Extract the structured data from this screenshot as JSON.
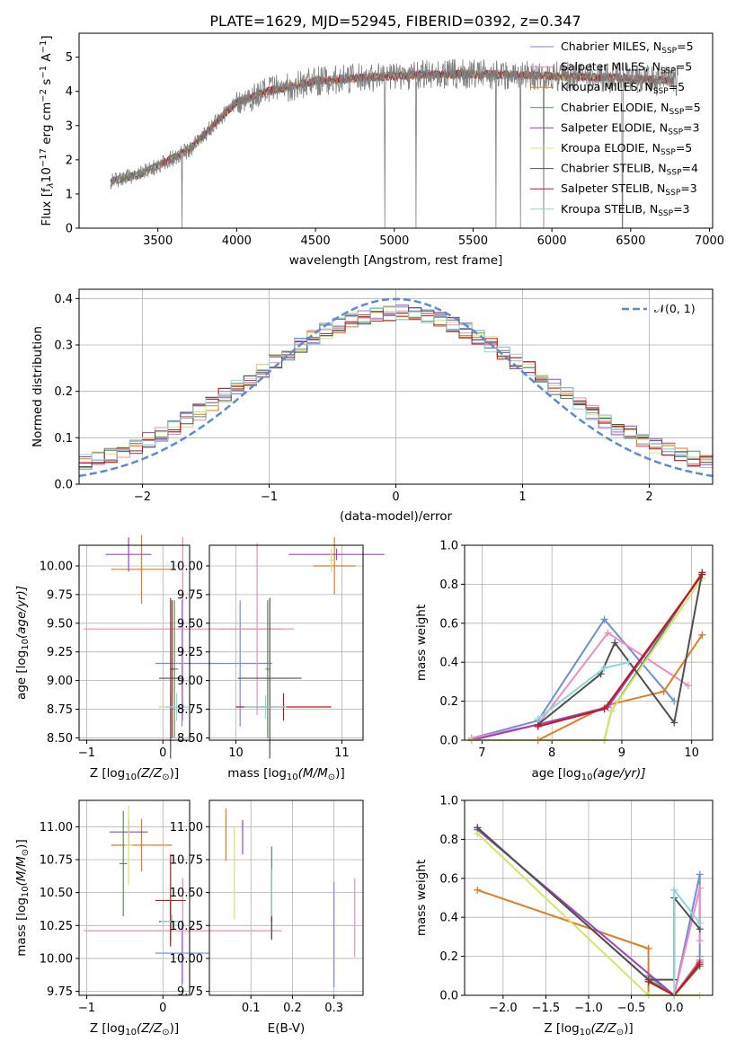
{
  "figure": {
    "title": "PLATE=1629, MJD=52945, FIBERID=0392, z=0.347"
  },
  "models": [
    {
      "label": "Chabrier MILES, N",
      "sub": "SSP",
      "suffix": "=5",
      "color": "#6a8fd6"
    },
    {
      "label": "Salpeter MILES, N",
      "sub": "SSP",
      "suffix": "=5",
      "color": "#f08ac0"
    },
    {
      "label": "Kroupa MILES, N",
      "sub": "SSP",
      "suffix": "=5",
      "color": "#e07b26"
    },
    {
      "label": "Chabrier ELODIE, N",
      "sub": "SSP",
      "suffix": "=5",
      "color": "#5c8a5c"
    },
    {
      "label": "Salpeter ELODIE, N",
      "sub": "SSP",
      "suffix": "=3",
      "color": "#a040c0"
    },
    {
      "label": "Kroupa ELODIE, N",
      "sub": "SSP",
      "suffix": "=5",
      "color": "#d8e36a"
    },
    {
      "label": "Chabrier STELIB, N",
      "sub": "SSP",
      "suffix": "=4",
      "color": "#505050"
    },
    {
      "label": "Salpeter STELIB, N",
      "sub": "SSP",
      "suffix": "=3",
      "color": "#c01818"
    },
    {
      "label": "Kroupa STELIB, N",
      "sub": "SSP",
      "suffix": "=3",
      "color": "#8ad8d8"
    }
  ],
  "chart_data": [
    {
      "id": "spectrum",
      "type": "line",
      "xlabel": "wavelength [Angstrom, rest frame]",
      "ylabel": "Flux [f",
      "ylabel_parts": [
        "Flux [f",
        "λ",
        "10",
        "−17",
        " erg cm",
        "−2",
        " s",
        "−1",
        " A",
        "−1",
        "]"
      ],
      "xlim": [
        3000,
        7020
      ],
      "ylim": [
        0,
        5.7
      ],
      "xticks": [
        "3500",
        "4000",
        "4500",
        "5000",
        "5500",
        "6000",
        "6500",
        "7000"
      ],
      "yticks": [
        "0",
        "1",
        "2",
        "3",
        "4",
        "5"
      ],
      "data_color": "#808080",
      "continuum": [
        [
          3200,
          1.35
        ],
        [
          3400,
          1.6
        ],
        [
          3550,
          1.95
        ],
        [
          3700,
          2.3
        ],
        [
          3850,
          3.0
        ],
        [
          4000,
          3.7
        ],
        [
          4200,
          4.0
        ],
        [
          4500,
          4.3
        ],
        [
          4800,
          4.4
        ],
        [
          5200,
          4.5
        ],
        [
          5600,
          4.5
        ],
        [
          6000,
          4.45
        ],
        [
          6400,
          4.4
        ],
        [
          6800,
          4.3
        ]
      ]
    },
    {
      "id": "residuals",
      "type": "line",
      "xlabel": "(data-model)/error",
      "ylabel": "Normed distribution",
      "xlim": [
        -2.5,
        2.5
      ],
      "ylim": [
        0,
        0.42
      ],
      "xticks": [
        "−2",
        "−1",
        "0",
        "1",
        "2"
      ],
      "yticks": [
        "0.0",
        "0.1",
        "0.2",
        "0.3",
        "0.4"
      ],
      "gauss_label": "𝒩(0, 1)",
      "gauss_color": "#5b8ad6"
    },
    {
      "id": "age_vs_Z",
      "type": "scatter",
      "xlabel": "Z [log",
      "ylabel": "age  [log",
      "xlim": [
        -1.1,
        0.35
      ],
      "ylim": [
        8.48,
        10.18
      ],
      "xticks": [
        "−1",
        "0"
      ],
      "yticks": [
        "8.50",
        "8.75",
        "9.00",
        "9.25",
        "9.50",
        "9.75",
        "10.00"
      ],
      "points": [
        {
          "x": 0.25,
          "y": 9.15,
          "xerr": 0.35,
          "yerr": 0.55
        },
        {
          "x": 0.26,
          "y": 9.45,
          "xerr": 1.3,
          "yerr": 0.8
        },
        {
          "x": -0.28,
          "y": 9.97,
          "xerr": 0.4,
          "yerr": 0.3
        },
        {
          "x": 0.15,
          "y": 9.1,
          "xerr": 0.05,
          "yerr": 0.6
        },
        {
          "x": -0.45,
          "y": 10.1,
          "xerr": 0.3,
          "yerr": 0.15
        },
        {
          "x": 0.1,
          "y": 8.77,
          "xerr": 0.15,
          "yerr": 0.12
        },
        {
          "x": 0.1,
          "y": 9.02,
          "xerr": 0.15,
          "yerr": 0.7
        },
        {
          "x": 0.12,
          "y": 9.1,
          "xerr": 0.02,
          "yerr": 0.6
        },
        {
          "x": 0.18,
          "y": 8.77,
          "xerr": 0.15,
          "yerr": 0.12
        }
      ]
    },
    {
      "id": "age_vs_mass",
      "type": "scatter",
      "xlabel": "mass [log",
      "xlim": [
        9.75,
        11.2
      ],
      "ylim": [
        8.48,
        10.18
      ],
      "xticks": [
        "10",
        "11"
      ],
      "yticks": [
        "8.50",
        "8.75",
        "9.00",
        "9.25",
        "9.50",
        "9.75",
        "10.00"
      ],
      "points": [
        {
          "x": 10.04,
          "y": 9.15,
          "xerr": 0.3,
          "yerr": 0.55
        },
        {
          "x": 10.2,
          "y": 9.45,
          "xerr": 0.35,
          "yerr": 0.75
        },
        {
          "x": 10.93,
          "y": 10.0,
          "xerr": 0.2,
          "yerr": 0.25
        },
        {
          "x": 10.3,
          "y": 9.1,
          "xerr": 0.02,
          "yerr": 0.6
        },
        {
          "x": 10.95,
          "y": 10.1,
          "xerr": 0.45,
          "yerr": 0.05
        },
        {
          "x": 10.9,
          "y": 10.05,
          "xerr": 0.02,
          "yerr": 0.1
        },
        {
          "x": 10.32,
          "y": 9.02,
          "xerr": 0.3,
          "yerr": 0.7
        },
        {
          "x": 10.45,
          "y": 8.77,
          "xerr": 0.45,
          "yerr": 0.12
        },
        {
          "x": 10.28,
          "y": 8.77,
          "xerr": 0.2,
          "yerr": 0.1
        }
      ]
    },
    {
      "id": "mass_weight_vs_age",
      "type": "line",
      "xlabel": "age  [log",
      "ylabel": "mass weight",
      "xlim": [
        6.75,
        10.3
      ],
      "ylim": [
        0,
        1.0
      ],
      "xticks": [
        "7",
        "8",
        "9",
        "10"
      ],
      "yticks": [
        "0.0",
        "0.2",
        "0.4",
        "0.6",
        "0.8",
        "1.0"
      ],
      "series": [
        {
          "x": [
            6.85,
            7.8,
            8.75,
            9.75
          ],
          "y": [
            0.01,
            0.1,
            0.62,
            0.2
          ]
        },
        {
          "x": [
            6.85,
            7.8,
            8.8,
            9.95
          ],
          "y": [
            0.01,
            0.08,
            0.55,
            0.28
          ]
        },
        {
          "x": [
            6.85,
            7.8,
            8.8,
            9.6,
            10.15
          ],
          "y": [
            0.0,
            0.0,
            0.18,
            0.25,
            0.54
          ]
        },
        {
          "x": [
            6.85,
            8.75,
            8.85,
            10.15
          ],
          "y": [
            0.0,
            0.0,
            0.15,
            0.86
          ]
        },
        {
          "x": [
            6.85,
            7.8,
            8.8,
            10.15
          ],
          "y": [
            0.0,
            0.08,
            0.17,
            0.85
          ]
        },
        {
          "x": [
            6.85,
            8.75,
            8.85,
            10.15
          ],
          "y": [
            0.0,
            0.0,
            0.15,
            0.83
          ]
        },
        {
          "x": [
            7.8,
            8.7,
            8.9,
            9.75,
            10.15
          ],
          "y": [
            0.08,
            0.34,
            0.5,
            0.09,
            0.86
          ]
        },
        {
          "x": [
            7.8,
            8.75,
            10.15
          ],
          "y": [
            0.07,
            0.16,
            0.85
          ]
        },
        {
          "x": [
            7.8,
            8.75,
            9.1
          ],
          "y": [
            0.11,
            0.37,
            0.4
          ]
        }
      ]
    },
    {
      "id": "mass_vs_Z",
      "type": "scatter",
      "xlabel": "Z [log",
      "ylabel": "mass [log",
      "xlim": [
        -1.1,
        0.35
      ],
      "ylim": [
        9.72,
        11.2
      ],
      "xticks": [
        "−1",
        "0"
      ],
      "yticks": [
        "9.75",
        "10.00",
        "10.25",
        "10.50",
        "10.75",
        "11.00"
      ],
      "points": [
        {
          "x": 0.25,
          "y": 10.04,
          "xerr": 0.35,
          "yerr": 0.25
        },
        {
          "x": 0.26,
          "y": 10.21,
          "xerr": 1.3,
          "yerr": 0.4
        },
        {
          "x": -0.28,
          "y": 10.86,
          "xerr": 0.4,
          "yerr": 0.2
        },
        {
          "x": -0.52,
          "y": 10.72,
          "xerr": 0.05,
          "yerr": 0.4
        },
        {
          "x": -0.45,
          "y": 10.96,
          "xerr": 0.25,
          "yerr": 0.1
        },
        {
          "x": -0.45,
          "y": 10.86,
          "xerr": 0.05,
          "yerr": 0.3
        },
        {
          "x": 0.1,
          "y": 10.28,
          "xerr": 0.15,
          "yerr": 0.15
        },
        {
          "x": 0.1,
          "y": 10.44,
          "xerr": 0.2,
          "yerr": 0.35
        },
        {
          "x": 0.12,
          "y": 10.28,
          "xerr": 0.15,
          "yerr": 0.05
        }
      ]
    },
    {
      "id": "mass_vs_EBV",
      "type": "scatter",
      "xlabel": "E(B-V)",
      "xlim": [
        0.0,
        0.37
      ],
      "ylim": [
        9.72,
        11.2
      ],
      "xticks": [
        "0.1",
        "0.2",
        "0.3"
      ],
      "yticks": [
        "9.75",
        "10.00",
        "10.25",
        "10.50",
        "10.75",
        "11.00"
      ],
      "points": [
        {
          "x": 0.3,
          "y": 10.18,
          "xerr": 0,
          "yerr": 0.4
        },
        {
          "x": 0.35,
          "y": 10.31,
          "xerr": 0,
          "yerr": 0.3
        },
        {
          "x": 0.04,
          "y": 10.94,
          "xerr": 0,
          "yerr": 0.2
        },
        {
          "x": 0.15,
          "y": 10.5,
          "xerr": 0,
          "yerr": 0.35
        },
        {
          "x": 0.08,
          "y": 10.92,
          "xerr": 0,
          "yerr": 0.13
        },
        {
          "x": 0.06,
          "y": 10.65,
          "xerr": 0,
          "yerr": 0.35
        },
        {
          "x": 0.15,
          "y": 10.41,
          "xerr": 0,
          "yerr": 0.27
        },
        {
          "x": 0.15,
          "y": 10.48,
          "xerr": 0,
          "yerr": 0.2
        },
        {
          "x": 0.15,
          "y": 10.5,
          "xerr": 0,
          "yerr": 0.18
        }
      ]
    },
    {
      "id": "mass_weight_vs_Z",
      "type": "line",
      "xlabel": "Z [log",
      "ylabel": "mass weight",
      "xlim": [
        -2.45,
        0.45
      ],
      "ylim": [
        0,
        1.0
      ],
      "xticks": [
        "−2.0",
        "−1.5",
        "−1.0",
        "−0.5",
        "0.0"
      ],
      "yticks": [
        "0.0",
        "0.2",
        "0.4",
        "0.6",
        "0.8",
        "1.0"
      ],
      "series": [
        {
          "x": [
            -0.3,
            0.0,
            0.3,
            0.3
          ],
          "y": [
            0.1,
            0.0,
            0.62,
            0.2
          ]
        },
        {
          "x": [
            0.0,
            0.3,
            0.3
          ],
          "y": [
            0.0,
            0.55,
            0.28
          ]
        },
        {
          "x": [
            -2.3,
            -0.3,
            -0.3,
            0.0,
            0.3
          ],
          "y": [
            0.54,
            0.24,
            0.0,
            0.0,
            0.18
          ]
        },
        {
          "x": [
            -2.3,
            -0.3,
            0.0,
            0.3
          ],
          "y": [
            0.86,
            0.08,
            0.0,
            0.15
          ]
        },
        {
          "x": [
            -2.3,
            0.0,
            0.3
          ],
          "y": [
            0.85,
            0.0,
            0.17
          ]
        },
        {
          "x": [
            -2.3,
            -0.3,
            0.0,
            0.3
          ],
          "y": [
            0.83,
            0.0,
            0.0,
            0.0
          ]
        },
        {
          "x": [
            -2.3,
            -0.3,
            0.0,
            0.0,
            0.3
          ],
          "y": [
            0.86,
            0.08,
            0.08,
            0.5,
            0.34
          ]
        },
        {
          "x": [
            -0.3,
            0.0,
            0.3
          ],
          "y": [
            0.07,
            0.0,
            0.16
          ]
        },
        {
          "x": [
            0.0,
            0.0,
            0.3
          ],
          "y": [
            0.0,
            0.54,
            0.37
          ]
        }
      ]
    }
  ],
  "axis_parts": {
    "log_open": "log",
    "log_sub": "10",
    "Z_unit": "(Z/Z",
    "sun": "⊙",
    "close_bracket": ")]",
    "mass_unit": "(M/M",
    "age_unit": "(age/yr)]",
    "spacer": " "
  }
}
